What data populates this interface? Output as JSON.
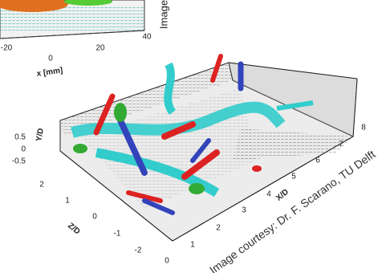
{
  "inset": {
    "x_label": "x [mm]",
    "x_ticks": [
      "-20",
      "0",
      "20",
      "40"
    ],
    "side_text": "Image"
  },
  "main": {
    "y_label": "Y/D",
    "y_ticks": [
      "0.5",
      "0",
      "-0.5"
    ],
    "z_label": "Z/D",
    "z_ticks": [
      "2",
      "1",
      "0",
      "-1",
      "-2"
    ],
    "x_label": "X/D",
    "x_ticks": [
      "0",
      "1",
      "2",
      "3",
      "4",
      "5",
      "6",
      "7",
      "8"
    ]
  },
  "credit": "Image courtesy: Dr. F. Scarano, TU Delft"
}
